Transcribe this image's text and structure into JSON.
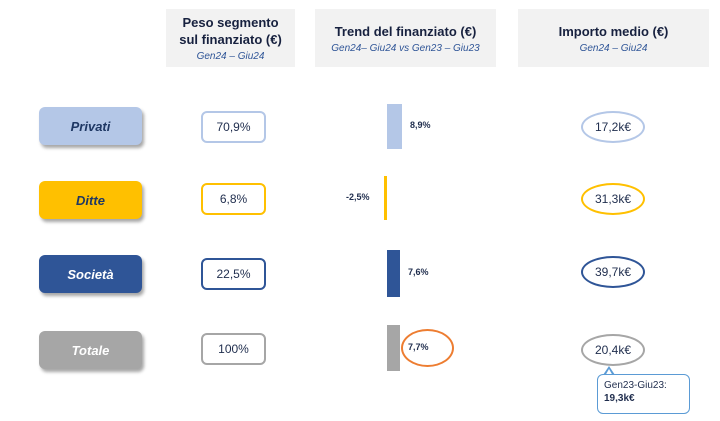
{
  "headers": {
    "peso": {
      "title": "Peso segmento\nsul finanziato (€)",
      "sub": "Gen24 – Giu24"
    },
    "trend": {
      "title": "Trend del finanziato (€)",
      "sub": "Gen24– Giu24 vs Gen23 – Giu23"
    },
    "importo": {
      "title": "Importo medio (€)",
      "sub": "Gen24 – Giu24"
    }
  },
  "rows": [
    {
      "segment": "Privati",
      "peso": "70,9%",
      "trend_label": "8,9%",
      "importo": "17,2k€",
      "color": "#b4c7e7",
      "text_color": "#1f3864"
    },
    {
      "segment": "Ditte",
      "peso": "6,8%",
      "trend_label": "-2,5%",
      "importo": "31,3k€",
      "color": "#ffc000",
      "text_color": "#1f3864"
    },
    {
      "segment": "Società",
      "peso": "22,5%",
      "trend_label": "7,6%",
      "importo": "39,7k€",
      "color": "#2f5597",
      "text_color": "#ffffff"
    },
    {
      "segment": "Totale",
      "peso": "100%",
      "trend_label": "7,7%",
      "importo": "20,4k€",
      "color": "#a6a6a6",
      "text_color": "#ffffff"
    }
  ],
  "callout": {
    "line1": "Gen23-Giu23:",
    "line2": "19,3k€"
  },
  "colors": {
    "highlight": "#ed7d31",
    "callout_border": "#5b9bd5"
  },
  "chart_data": {
    "type": "bar",
    "categories": [
      "Privati",
      "Ditte",
      "Società",
      "Totale"
    ],
    "values": [
      8.9,
      -2.5,
      7.6,
      7.7
    ],
    "title": "Trend del finanziato (€)",
    "subtitle": "Gen24– Giu24 vs Gen23 – Giu23",
    "orientation": "horizontal",
    "grid": false
  }
}
